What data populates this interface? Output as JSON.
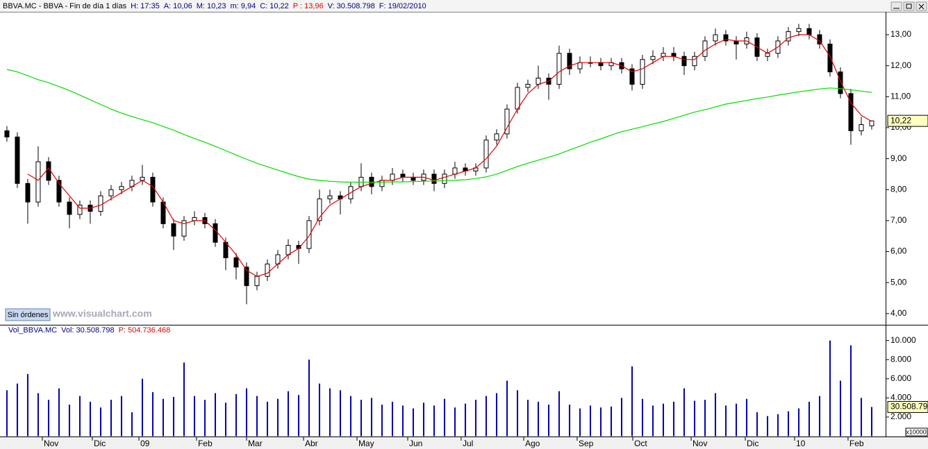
{
  "window": {
    "header": [
      {
        "text": "BBVA.MC - BBVA - Fin de día 1 días",
        "color": "#000000"
      },
      {
        "text": "H: 17:35",
        "color": "#000080"
      },
      {
        "text": "A: 10,06",
        "color": "#000080"
      },
      {
        "text": "M: 10,23",
        "color": "#000080"
      },
      {
        "text": "m: 9,94",
        "color": "#000080"
      },
      {
        "text": "C: 10,22",
        "color": "#000080"
      },
      {
        "text": "P : 13,96",
        "color": "#e00000"
      },
      {
        "text": "V: 30.508.798",
        "color": "#000080"
      },
      {
        "text": "F: 19/02/2010",
        "color": "#000080"
      }
    ]
  },
  "watermark": "www.visualchart.com",
  "orders_button": "Sin órdenes",
  "chart_data": [
    {
      "type": "candlestick",
      "open": [
        9.9,
        9.7,
        8.2,
        7.6,
        8.9,
        8.3,
        7.6,
        7.2,
        7.5,
        7.3,
        7.8,
        8.0,
        8.1,
        8.3,
        8.4,
        7.6,
        6.9,
        6.5,
        7.0,
        7.1,
        6.9,
        6.3,
        5.8,
        5.5,
        4.9,
        5.2,
        5.6,
        5.9,
        6.2,
        6.1,
        7.0,
        7.7,
        7.8,
        7.7,
        8.1,
        8.4,
        8.1,
        8.3,
        8.5,
        8.4,
        8.3,
        8.5,
        8.2,
        8.5,
        8.7,
        8.6,
        8.7,
        9.6,
        9.8,
        10.6,
        11.3,
        11.4,
        11.6,
        11.4,
        12.4,
        11.9,
        12.1,
        12.1,
        12.0,
        12.1,
        11.9,
        11.4,
        12.2,
        12.3,
        12.4,
        12.3,
        12.0,
        12.3,
        12.8,
        13.0,
        12.8,
        12.7,
        12.9,
        12.3,
        12.4,
        12.8,
        13.1,
        13.2,
        13.0,
        12.7,
        11.8,
        11.1,
        9.9,
        10.06
      ],
      "high": [
        10.05,
        9.85,
        8.35,
        9.4,
        9.05,
        8.45,
        7.75,
        7.65,
        7.65,
        7.95,
        8.15,
        8.25,
        8.45,
        8.8,
        8.55,
        7.75,
        7.05,
        7.15,
        7.3,
        7.25,
        7.05,
        6.45,
        5.95,
        5.65,
        5.35,
        5.75,
        6.05,
        6.4,
        6.35,
        7.15,
        8.0,
        8.0,
        7.95,
        8.25,
        8.85,
        8.55,
        8.45,
        8.7,
        8.65,
        8.55,
        8.65,
        8.65,
        8.65,
        8.9,
        8.85,
        8.85,
        9.75,
        9.95,
        10.75,
        11.45,
        11.55,
        12.0,
        11.75,
        12.65,
        12.55,
        12.3,
        12.3,
        12.25,
        12.25,
        12.25,
        12.05,
        12.35,
        12.5,
        12.6,
        12.6,
        12.45,
        12.45,
        12.95,
        13.2,
        13.15,
        12.95,
        13.1,
        13.05,
        12.55,
        12.95,
        13.25,
        13.35,
        13.35,
        13.15,
        12.85,
        11.95,
        11.25,
        10.35,
        10.23
      ],
      "low": [
        9.55,
        8.05,
        6.9,
        7.45,
        8.15,
        7.45,
        6.75,
        7.05,
        6.9,
        7.15,
        7.65,
        7.85,
        7.95,
        8.15,
        7.45,
        6.75,
        6.05,
        6.35,
        6.85,
        6.75,
        6.15,
        5.4,
        5.1,
        4.3,
        4.75,
        5.05,
        5.45,
        5.75,
        5.6,
        5.95,
        6.85,
        7.55,
        7.2,
        7.55,
        7.95,
        7.85,
        7.95,
        8.15,
        8.25,
        8.15,
        8.15,
        7.95,
        8.05,
        8.35,
        8.45,
        8.45,
        8.55,
        9.45,
        9.65,
        10.45,
        11.15,
        11.25,
        10.9,
        11.25,
        11.7,
        11.75,
        11.95,
        11.85,
        11.85,
        11.75,
        11.2,
        11.25,
        12.05,
        12.15,
        12.15,
        11.7,
        11.85,
        12.15,
        12.65,
        12.65,
        12.2,
        12.55,
        12.15,
        12.15,
        12.25,
        12.65,
        12.95,
        12.85,
        12.55,
        11.65,
        10.95,
        9.45,
        9.75,
        9.94
      ],
      "close": [
        9.7,
        8.2,
        7.6,
        8.9,
        8.3,
        7.6,
        7.2,
        7.5,
        7.3,
        7.8,
        8.0,
        8.1,
        8.3,
        8.4,
        7.6,
        6.9,
        6.5,
        7.0,
        7.1,
        6.9,
        6.3,
        5.8,
        5.5,
        4.9,
        5.2,
        5.6,
        5.9,
        6.2,
        6.1,
        7.0,
        7.7,
        7.8,
        7.7,
        8.1,
        8.4,
        8.1,
        8.3,
        8.5,
        8.4,
        8.3,
        8.5,
        8.2,
        8.5,
        8.7,
        8.6,
        8.7,
        9.6,
        9.8,
        10.6,
        11.3,
        11.4,
        11.6,
        11.4,
        12.4,
        11.9,
        12.1,
        12.1,
        12.0,
        12.1,
        11.9,
        11.4,
        12.2,
        12.3,
        12.4,
        12.3,
        12.0,
        12.3,
        12.8,
        13.0,
        12.8,
        12.7,
        12.9,
        12.3,
        12.4,
        12.8,
        13.1,
        13.2,
        13.0,
        12.7,
        11.8,
        11.1,
        9.9,
        10.1,
        10.22
      ],
      "overlays": [
        {
          "color": "#e00000",
          "values": [
            null,
            null,
            8.5,
            8.3,
            8.7,
            8.2,
            7.8,
            7.4,
            7.4,
            7.5,
            7.7,
            7.9,
            8.1,
            8.3,
            8.1,
            7.6,
            7.0,
            6.9,
            7.0,
            7.0,
            6.7,
            6.3,
            5.9,
            5.4,
            5.2,
            5.3,
            5.6,
            5.9,
            6.1,
            6.5,
            7.1,
            7.5,
            7.7,
            7.9,
            8.1,
            8.2,
            8.3,
            8.3,
            8.4,
            8.4,
            8.4,
            8.3,
            8.4,
            8.5,
            8.6,
            8.7,
            9.0,
            9.4,
            10.0,
            10.6,
            11.1,
            11.4,
            11.5,
            11.8,
            12.0,
            12.1,
            12.1,
            12.1,
            12.1,
            12.0,
            11.8,
            11.9,
            12.1,
            12.3,
            12.3,
            12.2,
            12.2,
            12.5,
            12.7,
            12.85,
            12.8,
            12.8,
            12.6,
            12.4,
            12.6,
            12.9,
            13.0,
            13.0,
            12.8,
            12.3,
            11.5,
            10.8,
            10.4,
            10.2
          ]
        },
        {
          "color": "#00dd00",
          "values": [
            11.88,
            11.8,
            11.68,
            11.55,
            11.45,
            11.33,
            11.2,
            11.05,
            10.9,
            10.75,
            10.6,
            10.47,
            10.36,
            10.26,
            10.16,
            10.04,
            9.92,
            9.78,
            9.65,
            9.53,
            9.4,
            9.26,
            9.12,
            8.98,
            8.85,
            8.74,
            8.63,
            8.52,
            8.42,
            8.34,
            8.3,
            8.27,
            8.25,
            8.24,
            8.24,
            8.24,
            8.24,
            8.25,
            8.25,
            8.26,
            8.27,
            8.28,
            8.29,
            8.3,
            8.32,
            8.36,
            8.41,
            8.5,
            8.62,
            8.75,
            8.85,
            8.95,
            9.05,
            9.15,
            9.28,
            9.4,
            9.53,
            9.64,
            9.76,
            9.87,
            9.95,
            10.03,
            10.12,
            10.2,
            10.3,
            10.4,
            10.5,
            10.58,
            10.67,
            10.76,
            10.82,
            10.88,
            10.94,
            10.99,
            11.05,
            11.1,
            11.16,
            11.2,
            11.25,
            11.28,
            11.26,
            11.22,
            11.18,
            11.14
          ]
        }
      ],
      "xlim": [
        -0.33,
        83.67
      ],
      "ylim": [
        3.66,
        13.74
      ],
      "yticks": [
        {
          "value": 4,
          "label": "4,00"
        },
        {
          "value": 5,
          "label": "5,00"
        },
        {
          "value": 6,
          "label": "6,00"
        },
        {
          "value": 7,
          "label": "7,00"
        },
        {
          "value": 8,
          "label": "8,00"
        },
        {
          "value": 9,
          "label": "9,00"
        },
        {
          "value": 10,
          "label": "10,00"
        },
        {
          "value": 11,
          "label": "11,00"
        },
        {
          "value": 12,
          "label": "12,00"
        },
        {
          "value": 13,
          "label": "13,00"
        }
      ],
      "marker": {
        "value": 10.22,
        "label": "10,22"
      }
    },
    {
      "type": "bar",
      "header": [
        {
          "text": "Vol_BBVA.MC",
          "color": "#000080"
        },
        {
          "text": "Vol: 30.508.798",
          "color": "#000080"
        },
        {
          "text": "P: 504.736.468",
          "color": "#e00000"
        }
      ],
      "color": "#0000aa",
      "values": [
        4800,
        5500,
        6500,
        4500,
        3800,
        5000,
        3300,
        4200,
        3600,
        3000,
        3800,
        4200,
        2500,
        6000,
        4600,
        3900,
        4100,
        7700,
        4200,
        3800,
        4500,
        3500,
        4400,
        5000,
        4200,
        3600,
        3900,
        4700,
        4300,
        8000,
        5500,
        5000,
        4800,
        4200,
        3800,
        4000,
        3300,
        3600,
        3200,
        2900,
        3500,
        3200,
        3900,
        3000,
        3400,
        3800,
        4200,
        4500,
        5800,
        4800,
        3800,
        3600,
        3300,
        4700,
        3300,
        2900,
        3200,
        3000,
        3100,
        4000,
        7300,
        3900,
        3200,
        3400,
        3600,
        5000,
        3700,
        3800,
        4500,
        3200,
        3400,
        3900,
        2500,
        2100,
        2300,
        2600,
        2900,
        3600,
        4200,
        10000,
        5800,
        9500,
        4000,
        3050.88
      ],
      "xlim": [
        -0.33,
        83.67
      ],
      "xticks": [
        {
          "value": 3.4,
          "label": "Nov"
        },
        {
          "value": 8.2,
          "label": "Dic"
        },
        {
          "value": 12.67,
          "label": "09"
        },
        {
          "value": 18.2,
          "label": "Feb"
        },
        {
          "value": 23,
          "label": "Mar"
        },
        {
          "value": 28.47,
          "label": "Abr"
        },
        {
          "value": 33.6,
          "label": "May"
        },
        {
          "value": 38.47,
          "label": "Jun"
        },
        {
          "value": 43.6,
          "label": "Jul"
        },
        {
          "value": 49.6,
          "label": "Ago"
        },
        {
          "value": 54.73,
          "label": "Sep"
        },
        {
          "value": 60.07,
          "label": "Oct"
        },
        {
          "value": 65.67,
          "label": "Nov"
        },
        {
          "value": 70.87,
          "label": "Dic"
        },
        {
          "value": 75.6,
          "label": "10"
        },
        {
          "value": 80.73,
          "label": "Feb"
        }
      ],
      "ylim": [
        0,
        11500
      ],
      "yticks": [
        {
          "value": 2000,
          "label": "2.000"
        },
        {
          "value": 4000,
          "label": "4.000"
        },
        {
          "value": 6000,
          "label": "6.000"
        },
        {
          "value": 8000,
          "label": "8.000"
        },
        {
          "value": 10000,
          "label": "10.000"
        }
      ],
      "multiplier": "x10000",
      "marker": {
        "value": 3050.88,
        "label": "30.508.79"
      }
    }
  ]
}
